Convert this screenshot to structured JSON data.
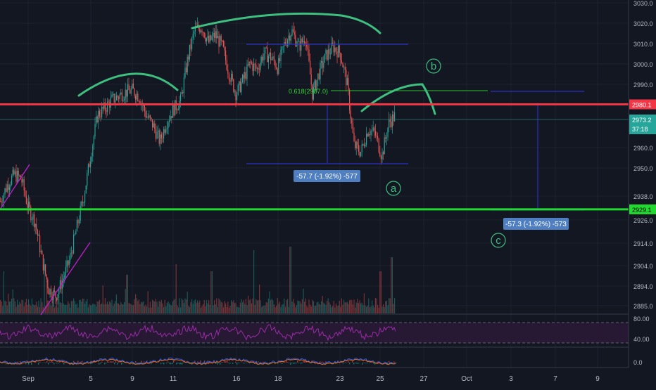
{
  "chart_data": {
    "type": "candlestick",
    "instrument_note": "intraday price chart with RSI and MACD sub-panes",
    "price_axis": {
      "ticks": [
        "3030.0",
        "3020.0",
        "3010.0",
        "3000.0",
        "2990.0",
        "2980.0",
        "2960.0",
        "2950.0",
        "2938.0",
        "2926.0",
        "2914.0",
        "2904.0",
        "2894.0",
        "2885.0"
      ]
    },
    "time_axis": {
      "ticks": [
        "Sep",
        "5",
        "9",
        "11",
        "16",
        "18",
        "23",
        "25",
        "27",
        "Oct",
        "3",
        "7",
        "9"
      ]
    },
    "price_path": [
      2933,
      2941,
      2946,
      2944,
      2930,
      2923,
      2905,
      2890,
      2887,
      2895,
      2905,
      2920,
      2935,
      2955,
      2975,
      2978,
      2982,
      2984,
      2986,
      2987,
      2984,
      2975,
      2970,
      2962,
      2972,
      2978,
      2982,
      3002,
      3016,
      3018,
      3010,
      3014,
      3008,
      2995,
      2985,
      2992,
      3000,
      2997,
      3005,
      3003,
      2998,
      3010,
      3016,
      3008,
      3013,
      2985,
      2996,
      3004,
      3008,
      3005,
      2990,
      2960,
      2957,
      2968,
      2966,
      2955,
      2971,
      2975
    ],
    "levels": [
      {
        "label": "2980.1",
        "value": 2980.1,
        "color": "#f23645"
      },
      {
        "label": "2929.1",
        "value": 2929.1,
        "color": "#22d930"
      }
    ],
    "last_price": {
      "label": "2973.2",
      "value": 2973.2,
      "color": "#26a69a"
    },
    "countdown": "37:18",
    "fib_label": "0.618(2987.0)",
    "measure_labels": [
      "-57.7 (-1.92%) -577",
      "-57.3 (-1.92%) -573"
    ],
    "wave_labels": [
      "a",
      "b",
      "c"
    ],
    "rsi": {
      "ticks": [
        "80.00",
        "40.00"
      ],
      "levels": [
        70,
        30
      ]
    },
    "macd": {
      "ticks": [
        "0.0"
      ]
    }
  },
  "colors": {
    "background": "#131722",
    "up": "#26a69a",
    "down": "#ef5350",
    "grid": "#1e2230",
    "axis_text": "#b2b5be",
    "annotation": "#3fbf7f",
    "measure": "#2b2fbf",
    "rsi_band": "#2a1836",
    "rsi_line": "#9b2ca8"
  }
}
